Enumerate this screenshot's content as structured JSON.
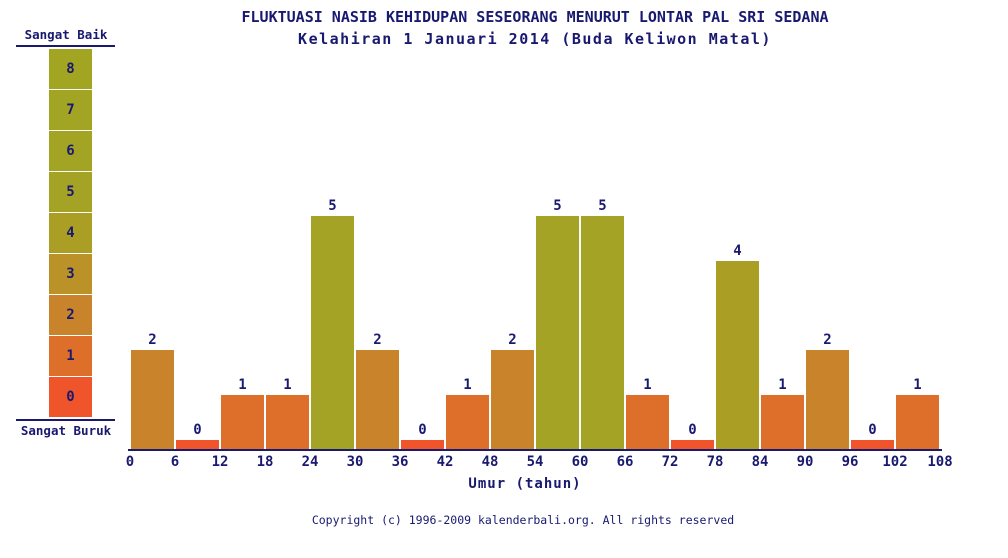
{
  "chart_data": {
    "type": "bar",
    "title": "FLUKTUASI NASIB KEHIDUPAN SESEORANG MENURUT LONTAR PAL SRI SEDANA",
    "subtitle": "Kelahiran 1 Januari 2014 (Buda Keliwon Matal)",
    "xlabel": "Umur (tahun)",
    "x_bin_start": [
      0,
      6,
      12,
      18,
      24,
      30,
      36,
      42,
      48,
      54,
      60,
      66,
      72,
      78,
      84,
      90,
      96,
      102
    ],
    "bin_width": 6,
    "values": [
      2,
      0,
      1,
      1,
      5,
      2,
      0,
      1,
      2,
      5,
      5,
      1,
      0,
      4,
      1,
      2,
      0,
      1
    ],
    "x_ticks": [
      0,
      6,
      12,
      18,
      24,
      30,
      36,
      42,
      48,
      54,
      60,
      66,
      72,
      78,
      84,
      90,
      96,
      102,
      108
    ],
    "ylim": [
      0,
      8
    ],
    "grid": "off",
    "bar_label_position": "above"
  },
  "legend": {
    "top_label": "Sangat Baik",
    "bottom_label": "Sangat Buruk",
    "levels": [
      8,
      7,
      6,
      5,
      4,
      3,
      2,
      1,
      0
    ]
  },
  "colors": {
    "text": "#191970",
    "axis": "#191970",
    "background": "#ffffff",
    "value_colors": {
      "0": "#f0542a",
      "1": "#dd6f2b",
      "2": "#c9842b",
      "3": "#ba9228",
      "4": "#ab9e25",
      "5": "#a5a325",
      "6": "#a3a424",
      "7": "#a2a423",
      "8": "#a1a522"
    }
  },
  "footer": {
    "copyright": "Copyright (c) 1996-2009 kalenderbali.org. All rights reserved"
  }
}
